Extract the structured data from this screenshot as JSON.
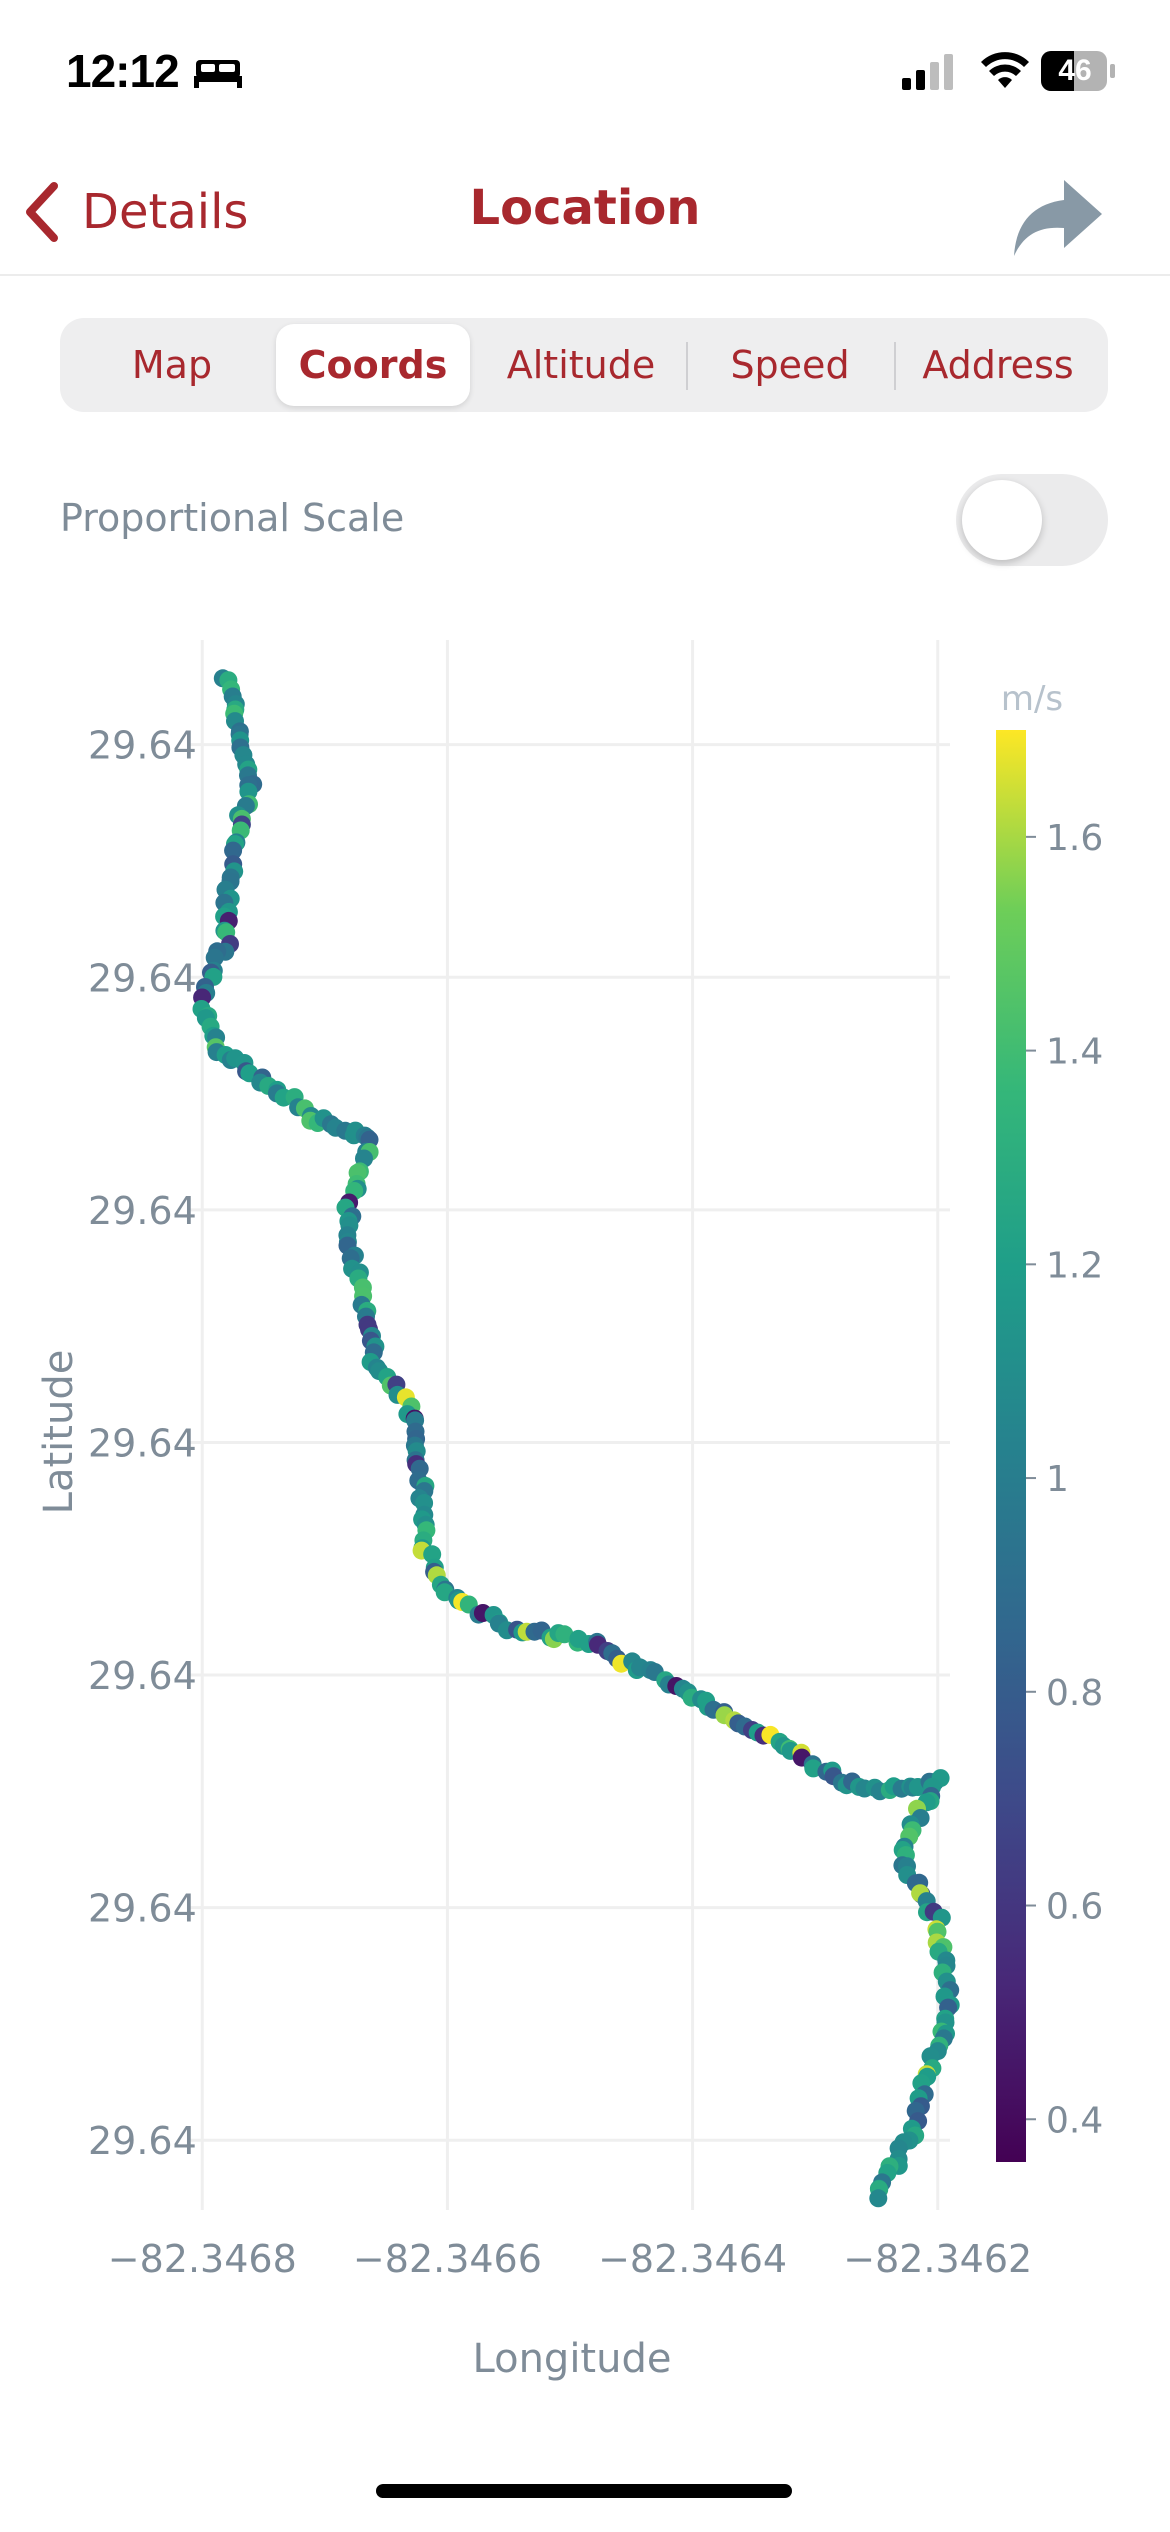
{
  "status_bar": {
    "time": "12:12",
    "battery": "46",
    "icons": [
      "bed-icon",
      "cellular-signal-icon",
      "wifi-icon",
      "battery-icon"
    ]
  },
  "nav": {
    "back_label": "Details",
    "title": "Location",
    "share_icon": "share-arrow-icon",
    "accent_color": "#a8282e"
  },
  "tabs": [
    {
      "label": "Map",
      "selected": false
    },
    {
      "label": "Coords",
      "selected": true
    },
    {
      "label": "Altitude",
      "selected": false
    },
    {
      "label": "Speed",
      "selected": false
    },
    {
      "label": "Address",
      "selected": false
    }
  ],
  "toggle": {
    "label": "Proportional Scale",
    "on": false
  },
  "chart_data": {
    "type": "scatter",
    "xlabel": "Longitude",
    "ylabel": "Latitude",
    "x_ticks": [
      -82.3468,
      -82.3466,
      -82.3464,
      -82.3462
    ],
    "x_tick_labels": [
      "−82.3468",
      "−82.3466",
      "−82.3464",
      "−82.3462"
    ],
    "y_ticks": [
      29.6413,
      29.6411,
      29.6409,
      29.6407,
      29.6405,
      29.6403,
      29.6401
    ],
    "y_tick_labels": [
      "29.64",
      "29.64",
      "29.64",
      "29.64",
      "29.64",
      "29.64",
      "29.64"
    ],
    "xlim": [
      -82.34681,
      -82.34619
    ],
    "ylim": [
      29.64004,
      29.64139
    ],
    "colorbar": {
      "title": "m/s",
      "min": 0.36,
      "max": 1.7,
      "ticks": [
        0.4,
        0.6,
        0.8,
        1.0,
        1.2,
        1.4,
        1.6
      ],
      "tick_labels": [
        "0.4",
        "0.6",
        "0.8",
        "1",
        "1.2",
        "1.4",
        "1.6"
      ],
      "colorscale": "viridis"
    },
    "grid": true,
    "track_vertices": [
      [
        -82.34678,
        29.64136
      ],
      [
        -82.34677,
        29.64131
      ],
      [
        -82.34676,
        29.64127
      ],
      [
        -82.34677,
        29.64123
      ],
      [
        -82.34678,
        29.64118
      ],
      [
        -82.34678,
        29.64113
      ],
      [
        -82.34679,
        29.64111
      ],
      [
        -82.3468,
        29.64108
      ],
      [
        -82.34679,
        29.64104
      ],
      [
        -82.34676,
        29.64102
      ],
      [
        -82.34671,
        29.64098
      ],
      [
        -82.34666,
        29.64096
      ],
      [
        -82.34668,
        29.64091
      ],
      [
        -82.34668,
        29.64087
      ],
      [
        -82.34667,
        29.64083
      ],
      [
        -82.34666,
        29.64077
      ],
      [
        -82.34663,
        29.64073
      ],
      [
        -82.34662,
        29.64066
      ],
      [
        -82.34662,
        29.64061
      ],
      [
        -82.3466,
        29.64057
      ],
      [
        -82.34655,
        29.64054
      ],
      [
        -82.34649,
        29.64053
      ],
      [
        -82.34643,
        29.6405
      ],
      [
        -82.34634,
        29.64045
      ],
      [
        -82.34628,
        29.64041
      ],
      [
        -82.34624,
        29.6404
      ],
      [
        -82.3462,
        29.64041
      ],
      [
        -82.34622,
        29.64037
      ],
      [
        -82.34623,
        29.64034
      ],
      [
        -82.3462,
        29.64029
      ],
      [
        -82.34619,
        29.64021
      ],
      [
        -82.34621,
        29.64015
      ],
      [
        -82.34622,
        29.64011
      ],
      [
        -82.34624,
        29.64007
      ],
      [
        -82.34625,
        29.64005
      ]
    ],
    "point_count": 300,
    "speed_range_observed": [
      0.36,
      1.7
    ]
  }
}
